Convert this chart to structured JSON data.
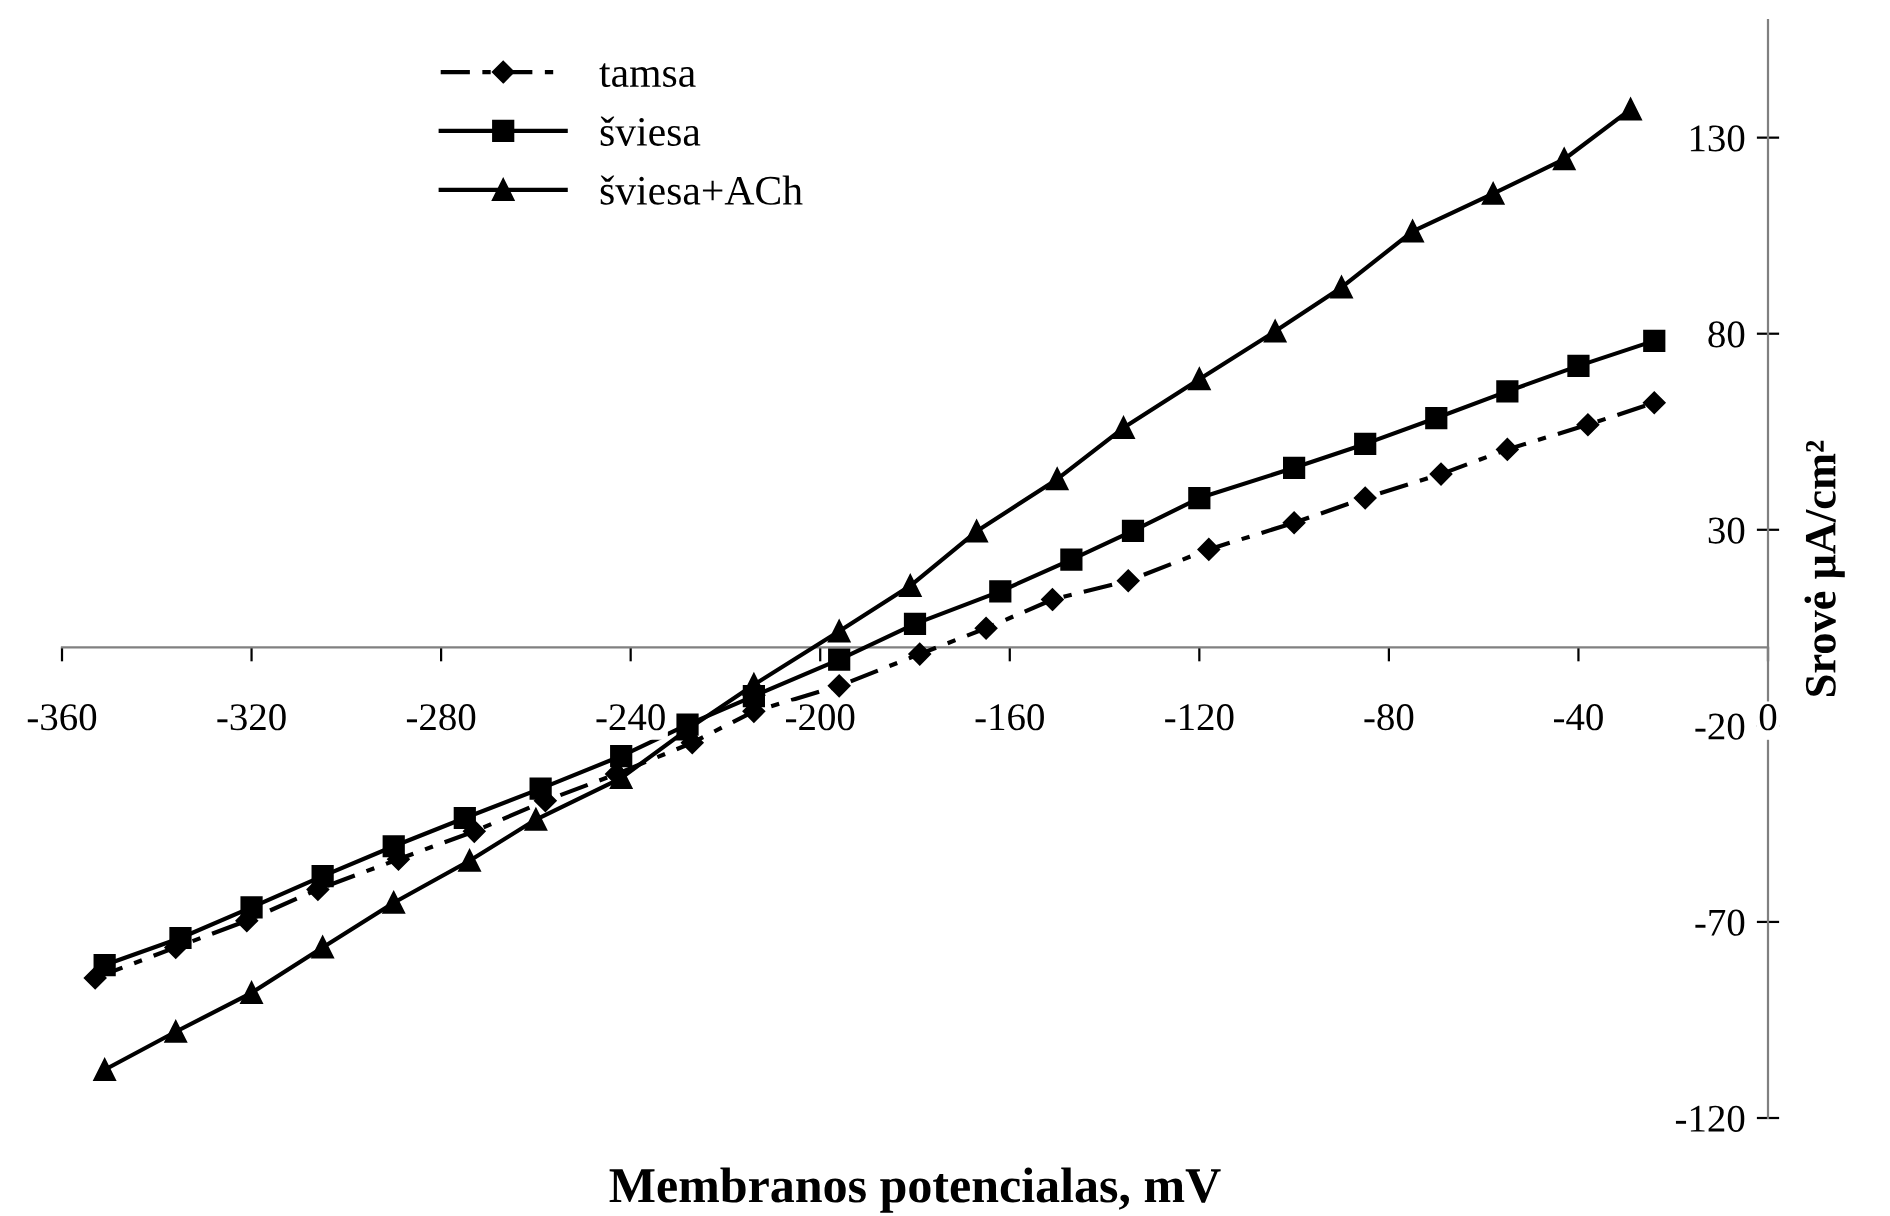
{
  "chart_data": {
    "type": "line",
    "xlabel": "Membranos potencialas, mV",
    "ylabel": "Srovė μA/cm²",
    "xlim": [
      -360,
      0
    ],
    "xticks": [
      -360,
      -320,
      -280,
      -240,
      -200,
      -160,
      -120,
      -80,
      -40,
      0
    ],
    "ylim": [
      -120,
      160
    ],
    "yticks": [
      -120,
      -70,
      -20,
      30,
      80,
      130
    ],
    "grid": false,
    "legend": "top left",
    "series": [
      {
        "name": "tamsa",
        "color": "#000000",
        "marker": "diamond",
        "line_style": "dashed",
        "x": [
          -353,
          -336,
          -321,
          -306,
          -289,
          -273,
          -258,
          -243,
          -227,
          -214,
          -196,
          -179,
          -165,
          -151,
          -135,
          -118,
          -100,
          -85,
          -69,
          -55,
          -38,
          -24
        ],
        "values": [
          -84.3,
          -76.5,
          -69.7,
          -61.7,
          -54,
          -46.9,
          -39.1,
          -32.3,
          -24.3,
          -16.3,
          -9.8,
          -1.7,
          4.9,
          12.2,
          17,
          25,
          31.8,
          38.1,
          44.2,
          50.5,
          56.8,
          62.4
        ]
      },
      {
        "name": "šviesa",
        "color": "#000000",
        "marker": "square",
        "line_style": "solid",
        "x": [
          -351,
          -335,
          -320,
          -305,
          -290,
          -275,
          -259,
          -242,
          -228,
          -214,
          -196,
          -180,
          -162,
          -147,
          -134,
          -120,
          -100,
          -85,
          -70,
          -55,
          -40,
          -24
        ],
        "values": [
          -81,
          -74.1,
          -66.3,
          -58.3,
          -50.7,
          -43.5,
          -36,
          -27.7,
          -19.7,
          -12.4,
          -3.1,
          6,
          14.3,
          22.4,
          29.7,
          38.1,
          45.8,
          51.9,
          58.5,
          65.3,
          71.8,
          78.2
        ]
      },
      {
        "name": "šviesa+ACh",
        "color": "#000000",
        "marker": "triangle",
        "line_style": "solid",
        "x": [
          -351,
          -336,
          -320,
          -305,
          -290,
          -274,
          -260,
          -242,
          -228,
          -214,
          -196,
          -181,
          -167,
          -150,
          -136,
          -120,
          -104,
          -90,
          -75,
          -58,
          -43,
          -29
        ],
        "values": [
          -107.7,
          -98,
          -88.1,
          -76.5,
          -65.1,
          -54.4,
          -43.9,
          -33.3,
          -20.9,
          -9.5,
          4.1,
          15.7,
          29.6,
          42.9,
          56,
          68.4,
          80.6,
          91.8,
          106.1,
          115.7,
          124.5,
          137.2
        ]
      }
    ]
  }
}
